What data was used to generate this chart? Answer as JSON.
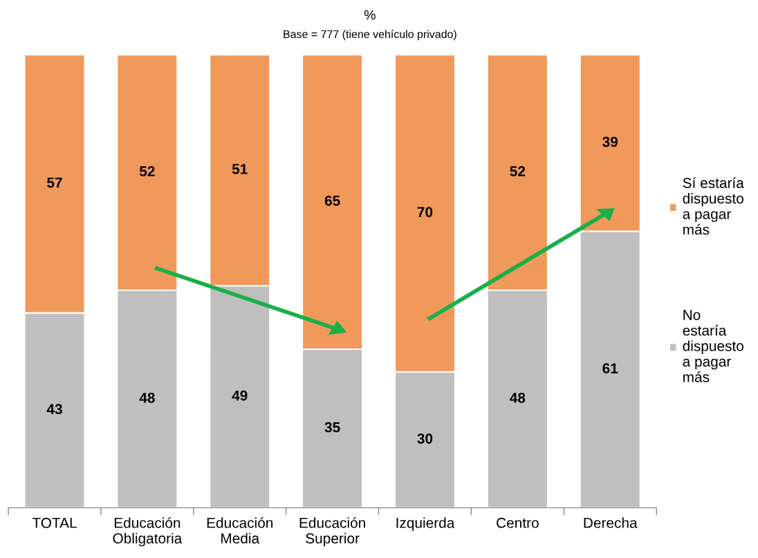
{
  "chart_data": {
    "type": "bar",
    "title": "%",
    "subtitle": "Base = 777 (tiene vehículo privado)",
    "categories": [
      "TOTAL",
      "Educación\nObligatoria",
      "Educación\nMedia",
      "Educación\nSuperior",
      "Izquierda",
      "Centro",
      "Derecha"
    ],
    "stacked": true,
    "data_labels": true,
    "legend": "right",
    "grid": false,
    "series": [
      {
        "name": "No\nestaría\ndispuesto\na pagar\nmás",
        "color": "#bfbfbf",
        "values": [
          43,
          48,
          49,
          35,
          30,
          48,
          61
        ]
      },
      {
        "name": "Sí estaría\ndispuesto\na pagar\nmás",
        "color": "#f0995a",
        "values": [
          57,
          52,
          51,
          65,
          70,
          52,
          39
        ]
      }
    ]
  }
}
